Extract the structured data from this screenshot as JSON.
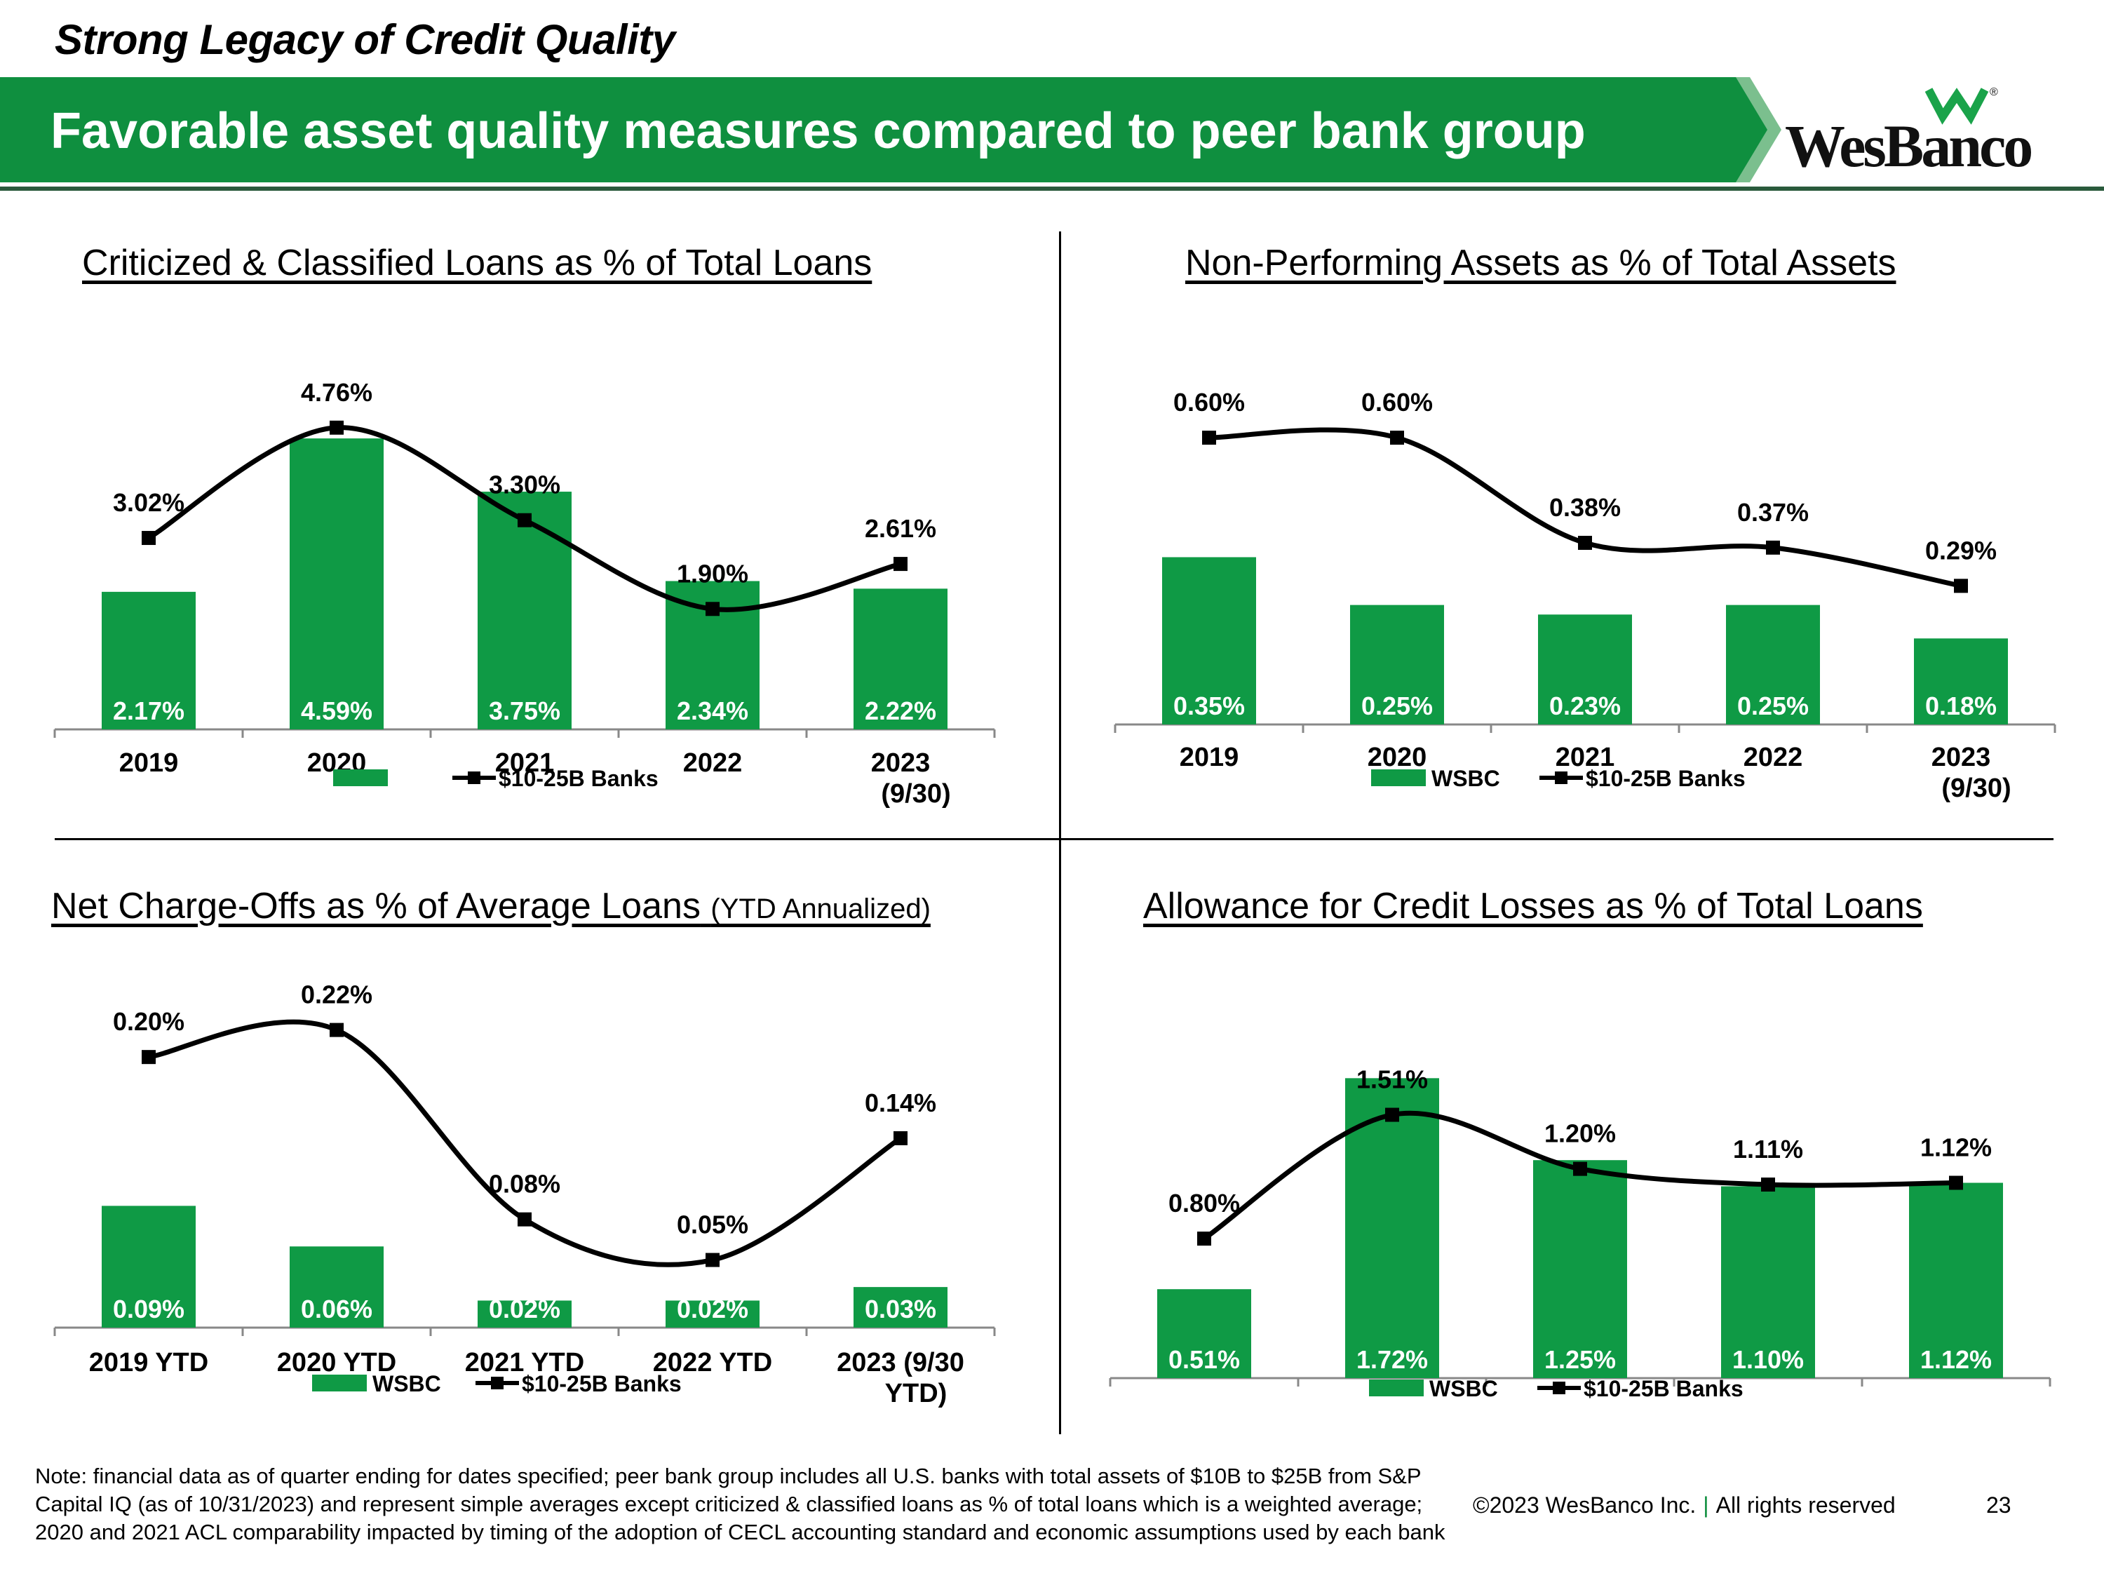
{
  "header": {
    "subtitle": "Strong Legacy of Credit Quality",
    "title": "Favorable asset quality measures compared to peer bank group",
    "logo_text": "WesBanco",
    "logo_mark": "®"
  },
  "colors": {
    "brand_green": "#0f8f3f",
    "bar_green": "#0f9a45",
    "line": "#000000"
  },
  "chart_data": [
    {
      "id": "ccl",
      "type": "bar+line",
      "title": "Criticized & Classified Loans as % of Total Loans",
      "title_note": "",
      "categories": [
        "2019",
        "2020",
        "2021",
        "2022",
        "2023 (9/30)"
      ],
      "series": [
        {
          "name": "",
          "kind": "bar",
          "values": [
            2.17,
            4.59,
            3.75,
            2.34,
            2.22
          ],
          "labels": [
            "2.17%",
            "4.59%",
            "3.75%",
            "2.34%",
            "2.22%"
          ]
        },
        {
          "name": "$10-25B Banks",
          "kind": "line",
          "values": [
            3.02,
            4.76,
            3.3,
            1.9,
            2.61
          ],
          "labels": [
            "3.02%",
            "4.76%",
            "3.30%",
            "1.90%",
            "2.61%"
          ]
        }
      ],
      "ylim": [
        0,
        5.2
      ]
    },
    {
      "id": "npa",
      "type": "bar+line",
      "title": "Non-Performing Assets as % of Total Assets",
      "title_note": "",
      "categories": [
        "2019",
        "2020",
        "2021",
        "2022",
        "2023 (9/30)"
      ],
      "series": [
        {
          "name": "WSBC",
          "kind": "bar",
          "values": [
            0.35,
            0.25,
            0.23,
            0.25,
            0.18
          ],
          "labels": [
            "0.35%",
            "0.25%",
            "0.23%",
            "0.25%",
            "0.18%"
          ]
        },
        {
          "name": "$10-25B Banks",
          "kind": "line",
          "values": [
            0.6,
            0.6,
            0.38,
            0.37,
            0.29
          ],
          "labels": [
            "0.60%",
            "0.60%",
            "0.38%",
            "0.37%",
            "0.29%"
          ]
        }
      ],
      "ylim": [
        0,
        0.65
      ]
    },
    {
      "id": "nco",
      "type": "bar+line",
      "title": "Net Charge-Offs as % of Average Loans",
      "title_note": "(YTD Annualized)",
      "categories": [
        "2019 YTD",
        "2020 YTD",
        "2021 YTD",
        "2022 YTD",
        "2023 (9/30 YTD)"
      ],
      "series": [
        {
          "name": "WSBC",
          "kind": "bar",
          "values": [
            0.09,
            0.06,
            0.02,
            0.02,
            0.03
          ],
          "labels": [
            "0.09%",
            "0.06%",
            "0.02%",
            "0.02%",
            "0.03%"
          ]
        },
        {
          "name": "$10-25B Banks",
          "kind": "line",
          "values": [
            0.2,
            0.22,
            0.08,
            0.05,
            0.14
          ],
          "labels": [
            "0.20%",
            "0.22%",
            "0.08%",
            "0.05%",
            "0.14%"
          ]
        }
      ],
      "ylim": [
        0,
        0.24
      ]
    },
    {
      "id": "acl",
      "type": "bar+line",
      "title": "Allowance for Credit Losses as % of Total Loans",
      "title_note": "",
      "categories": [
        "",
        "",
        "",
        "",
        ""
      ],
      "series": [
        {
          "name": "WSBC",
          "kind": "bar",
          "values": [
            0.51,
            1.72,
            1.25,
            1.1,
            1.12
          ],
          "labels": [
            "0.51%",
            "1.72%",
            "1.25%",
            "1.10%",
            "1.12%"
          ]
        },
        {
          "name": "$10-25B Banks",
          "kind": "line",
          "values": [
            0.8,
            1.51,
            1.2,
            1.11,
            1.12
          ],
          "labels": [
            "0.80%",
            "1.51%",
            "1.20%",
            "1.11%",
            "1.12%"
          ]
        }
      ],
      "ylim": [
        0,
        1.85
      ]
    }
  ],
  "footer": {
    "note": "Note: financial data as of quarter ending for dates specified; peer bank group includes all U.S. banks with total assets of $10B to $25B from S&P Capital IQ (as of 10/31/2023) and represent simple averages except criticized & classified loans as % of total loans which is a weighted average; 2020 and 2021 ACL comparability impacted by timing of the adoption of CECL accounting standard and economic assumptions used by each bank",
    "copyright": "©2023 WesBanco Inc.",
    "separator": "|",
    "rights": "All rights reserved",
    "page_number": "23"
  }
}
